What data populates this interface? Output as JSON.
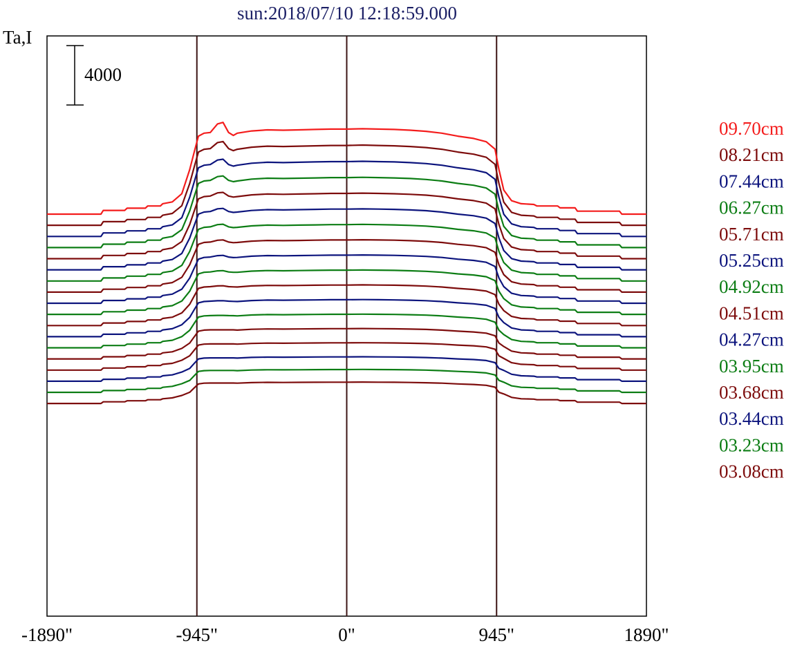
{
  "chart_data": {
    "type": "line",
    "title": "sun:2018/07/10 12:18:59.000",
    "ylabel": "Ta,I",
    "scale_bar_label": "4000",
    "scale_bar_value": 4000,
    "xlabel": "",
    "x_ticks": [
      -1890,
      -945,
      0,
      945,
      1890
    ],
    "x_tick_labels": [
      "-1890\"",
      "-945\"",
      "0\"",
      "945\"",
      "1890\""
    ],
    "xlim": [
      -1890,
      1890
    ],
    "vertical_lines": [
      -945,
      0,
      945
    ],
    "grid": false,
    "legend_position": "right",
    "colors": {
      "red": "#f41c1c",
      "maroon": "#7d0c0c",
      "navy": "#0c147d",
      "green": "#0c7d14",
      "axis": "#000000",
      "vline": "#3c1414",
      "title": "#1c2066"
    },
    "profile_points": [
      [
        -1890,
        0
      ],
      [
        -1550,
        0
      ],
      [
        -1535,
        1000
      ],
      [
        -1400,
        1000
      ],
      [
        -1385,
        1600
      ],
      [
        -1270,
        1600
      ],
      [
        -1255,
        2200
      ],
      [
        -1175,
        2200
      ],
      [
        -1160,
        2800
      ],
      [
        -1100,
        3300
      ],
      [
        -1040,
        5500
      ],
      [
        -990,
        12000
      ],
      [
        -960,
        17000
      ],
      [
        -935,
        21000
      ],
      [
        -900,
        21800
      ],
      [
        -860,
        22000
      ],
      [
        -815,
        24300
      ],
      [
        -780,
        24700
      ],
      [
        -745,
        22000
      ],
      [
        -715,
        21200
      ],
      [
        -690,
        21800
      ],
      [
        -600,
        22400
      ],
      [
        -500,
        22700
      ],
      [
        -400,
        22600
      ],
      [
        -300,
        22700
      ],
      [
        -200,
        22800
      ],
      [
        -100,
        22900
      ],
      [
        0,
        22900
      ],
      [
        100,
        23000
      ],
      [
        200,
        22900
      ],
      [
        300,
        22800
      ],
      [
        400,
        22600
      ],
      [
        500,
        22300
      ],
      [
        600,
        21800
      ],
      [
        700,
        21000
      ],
      [
        800,
        20400
      ],
      [
        880,
        19500
      ],
      [
        935,
        17500
      ],
      [
        960,
        12000
      ],
      [
        990,
        6500
      ],
      [
        1040,
        3600
      ],
      [
        1100,
        2800
      ],
      [
        1180,
        2600
      ],
      [
        1200,
        2200
      ],
      [
        1330,
        2200
      ],
      [
        1345,
        1700
      ],
      [
        1440,
        1700
      ],
      [
        1455,
        800
      ],
      [
        1720,
        800
      ],
      [
        1735,
        0
      ],
      [
        1890,
        0
      ]
    ],
    "limb_peak_scale": [
      1.62,
      1.45,
      1.35,
      1.3,
      1.26,
      1.23,
      1.2,
      1.17,
      1.14,
      1.11,
      1.08,
      1.05,
      1.02,
      1.0
    ],
    "series": [
      {
        "name": "09.70cm",
        "color": "#f41c1c",
        "baseline": 8000
      },
      {
        "name": "08.21cm",
        "color": "#7d0c0c",
        "baseline": 7250
      },
      {
        "name": "07.44cm",
        "color": "#0c147d",
        "baseline": 6500
      },
      {
        "name": "06.27cm",
        "color": "#0c7d14",
        "baseline": 5750
      },
      {
        "name": "05.71cm",
        "color": "#7d0c0c",
        "baseline": 5000
      },
      {
        "name": "05.25cm",
        "color": "#0c147d",
        "baseline": 4250
      },
      {
        "name": "04.92cm",
        "color": "#0c7d14",
        "baseline": 3500
      },
      {
        "name": "04.51cm",
        "color": "#7d0c0c",
        "baseline": 2750
      },
      {
        "name": "04.27cm",
        "color": "#0c147d",
        "baseline": 2000
      },
      {
        "name": "03.95cm",
        "color": "#0c7d14",
        "baseline": 1250
      },
      {
        "name": "03.68cm",
        "color": "#7d0c0c",
        "baseline": 500
      },
      {
        "name": "03.44cm",
        "color": "#0c147d",
        "baseline": -250
      },
      {
        "name": "03.23cm",
        "color": "#0c7d14",
        "baseline": -1000
      },
      {
        "name": "03.08cm",
        "color": "#7d0c0c",
        "baseline": -1750
      }
    ],
    "extra_curves": [
      {
        "color": "#7d0c0c",
        "baseline": -2500
      },
      {
        "color": "#0c147d",
        "baseline": -3250
      },
      {
        "color": "#0c7d14",
        "baseline": -4000
      },
      {
        "color": "#7d0c0c",
        "baseline": -4750
      }
    ]
  }
}
